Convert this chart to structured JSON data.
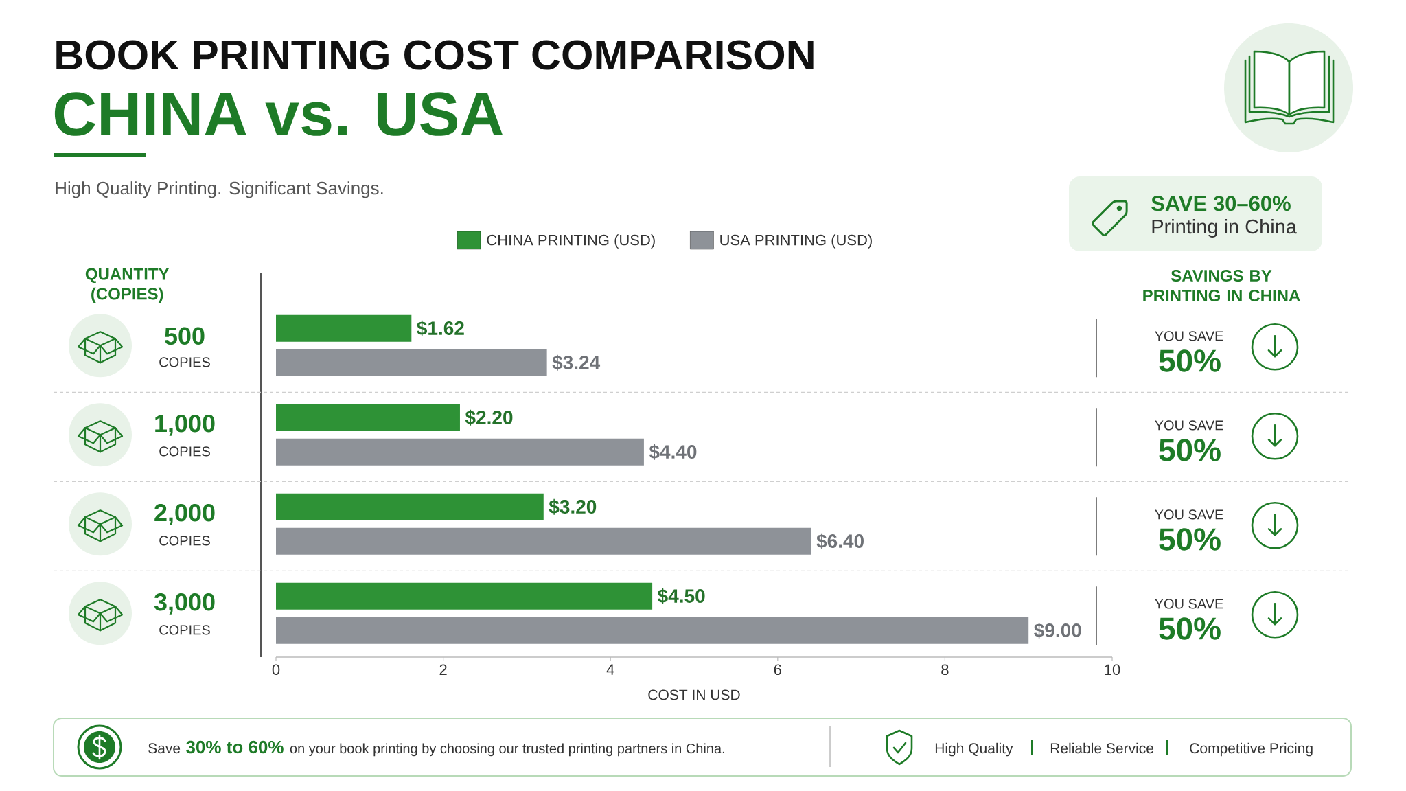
{
  "chart_data": {
    "type": "bar",
    "orientation": "horizontal",
    "title": "BOOK PRINTING COST COMPARISON",
    "subtitle": "CHINA vs. USA",
    "xlabel": "COST IN USD",
    "ylabel": "QUANTITY (COPIES)",
    "categories": [
      "500",
      "1,000",
      "2,000",
      "3,000"
    ],
    "series": [
      {
        "name": "CHINA PRINTING (USD)",
        "color": "#2e9236",
        "values": [
          1.62,
          2.2,
          3.2,
          4.5
        ],
        "value_labels": [
          "$1.62",
          "$2.20",
          "$3.20",
          "$4.50"
        ]
      },
      {
        "name": "USA PRINTING (USD)",
        "color": "#8e9298",
        "values": [
          3.24,
          4.4,
          6.4,
          9.0
        ],
        "value_labels": [
          "$3.24",
          "$4.40",
          "$6.40",
          "$9.00"
        ]
      }
    ],
    "xlim": [
      0,
      10
    ],
    "xticks": [
      0,
      2,
      4,
      6,
      8,
      10
    ],
    "legend": "top",
    "annotations": [
      "High Quality Printing. Significant Savings.",
      "SAVE 30–60%",
      "Printing in China",
      "SAVINGS BY PRINTING IN CHINA",
      "COPIES",
      "COPIES",
      "COPIES",
      "COPIES",
      "YOU SAVE",
      "50%",
      "YOU SAVE",
      "50%",
      "YOU SAVE",
      "50%",
      "YOU SAVE",
      "50%",
      "Save",
      "30% to 60%",
      "on your book printing by choosing our trusted printing partners in China.",
      "High Quality",
      "Reliable Service",
      "Competitive Pricing"
    ]
  }
}
